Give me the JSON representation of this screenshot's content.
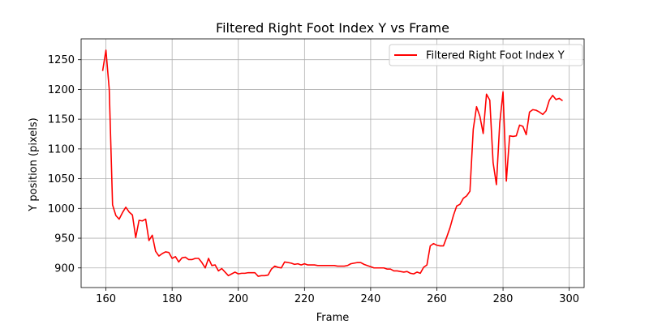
{
  "chart_data": {
    "type": "line",
    "title": "Filtered Right Foot Index Y vs Frame",
    "xlabel": "Frame",
    "ylabel": "Y position (pixels)",
    "xlim": [
      152.5,
      304.5
    ],
    "ylim": [
      867,
      1285
    ],
    "xticks": [
      160,
      180,
      200,
      220,
      240,
      260,
      280,
      300
    ],
    "yticks": [
      900,
      950,
      1000,
      1050,
      1100,
      1150,
      1200,
      1250
    ],
    "grid": true,
    "legend_position": "upper right",
    "series": [
      {
        "name": "Filtered Right Foot Index Y",
        "color": "#ff0000",
        "x": [
          159,
          160,
          161,
          162,
          163,
          164,
          165,
          166,
          167,
          168,
          169,
          170,
          171,
          172,
          173,
          174,
          175,
          176,
          177,
          178,
          179,
          180,
          181,
          182,
          183,
          184,
          185,
          186,
          187,
          188,
          189,
          190,
          191,
          192,
          193,
          194,
          195,
          196,
          197,
          198,
          199,
          200,
          201,
          202,
          203,
          204,
          205,
          206,
          207,
          208,
          209,
          210,
          211,
          212,
          213,
          214,
          215,
          216,
          217,
          218,
          219,
          220,
          221,
          222,
          223,
          224,
          225,
          226,
          227,
          228,
          229,
          230,
          231,
          232,
          233,
          234,
          235,
          236,
          237,
          238,
          239,
          240,
          241,
          242,
          243,
          244,
          245,
          246,
          247,
          248,
          249,
          250,
          251,
          252,
          253,
          254,
          255,
          256,
          257,
          258,
          259,
          260,
          261,
          262,
          263,
          264,
          265,
          266,
          267,
          268,
          269,
          270,
          271,
          272,
          273,
          274,
          275,
          276,
          277,
          278,
          279,
          280,
          281,
          282,
          283,
          284,
          285,
          286,
          287,
          288,
          289,
          290,
          291,
          292,
          293,
          294,
          295,
          296,
          297,
          298
        ],
        "y": [
          1231,
          1266,
          1200,
          1006,
          988,
          982,
          993,
          1002,
          994,
          989,
          951,
          980,
          979,
          982,
          946,
          955,
          928,
          920,
          924,
          927,
          926,
          916,
          919,
          910,
          917,
          918,
          914,
          914,
          916,
          916,
          909,
          900,
          916,
          904,
          905,
          895,
          899,
          893,
          887,
          890,
          893,
          890,
          891,
          891,
          892,
          892,
          892,
          886,
          887,
          887,
          888,
          898,
          903,
          901,
          900,
          910,
          909,
          908,
          906,
          907,
          905,
          907,
          905,
          905,
          905,
          904,
          904,
          904,
          904,
          904,
          904,
          903,
          903,
          903,
          904,
          907,
          908,
          909,
          909,
          906,
          904,
          902,
          900,
          900,
          900,
          900,
          898,
          898,
          895,
          895,
          894,
          893,
          894,
          891,
          890,
          893,
          891,
          901,
          905,
          937,
          941,
          938,
          937,
          937,
          952,
          968,
          988,
          1004,
          1007,
          1017,
          1021,
          1029,
          1133,
          1171,
          1155,
          1126,
          1192,
          1182,
          1077,
          1040,
          1143,
          1196,
          1046,
          1122,
          1121,
          1122,
          1140,
          1138,
          1124,
          1162,
          1166,
          1165,
          1162,
          1158,
          1164,
          1182,
          1190,
          1183,
          1185,
          1181
        ]
      }
    ]
  }
}
